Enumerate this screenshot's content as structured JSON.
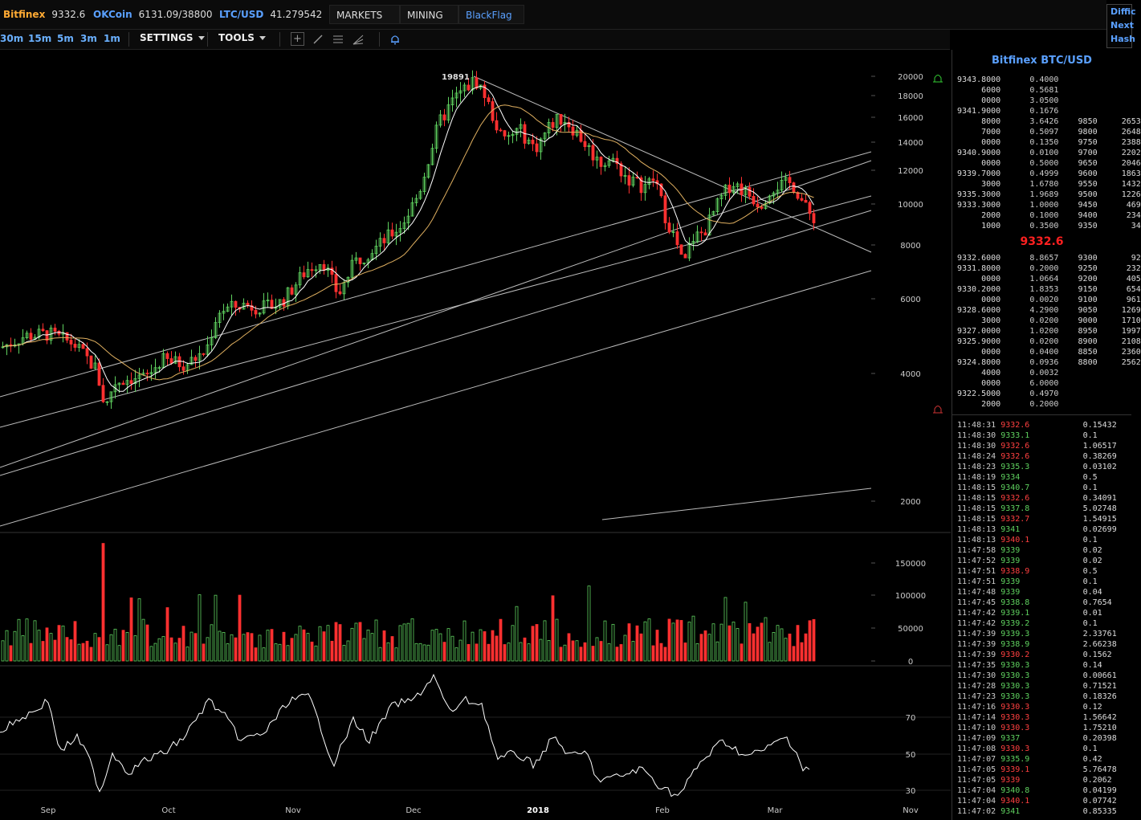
{
  "header": {
    "tickers": [
      {
        "name": "Bitfinex",
        "value": "9332.6",
        "color": "#ffaa33"
      },
      {
        "name": "OKCoin",
        "value": "6131.09/38800",
        "color": "#5aa0ff"
      },
      {
        "name": "LTC/USD",
        "value": "41.279542",
        "color": "#5aa0ff"
      }
    ],
    "menus": [
      "MARKETS",
      "MINING",
      "BlackFlag"
    ],
    "right_labels": [
      "Diffic",
      "Next",
      "Hash"
    ]
  },
  "toolbar": {
    "timeframes": [
      "30m",
      "15m",
      "5m",
      "3m",
      "1m"
    ],
    "settings_label": "SETTINGS",
    "tools_label": "TOOLS",
    "tool_icons": [
      "crosshair-icon",
      "line-draw-icon",
      "horizontal-lines-icon",
      "fib-fan-icon",
      "alert-bell-icon"
    ]
  },
  "chart_data": {
    "type": "candlestick",
    "title": "",
    "scale": "log",
    "price_ticks": [
      "20000",
      "18000",
      "16000",
      "14000",
      "12000",
      "10000",
      "8000",
      "6000",
      "4000",
      "2000"
    ],
    "high_marker": "19891",
    "date_ticks": [
      "Sep",
      "Oct",
      "Nov",
      "Dec",
      "2018",
      "Feb",
      "Mar",
      "Nov"
    ],
    "volume_ticks": [
      "150000",
      "100000",
      "50000",
      "0"
    ],
    "oscillator_ticks": [
      "70",
      "50",
      "30"
    ],
    "colors": {
      "up": "#5fd15f",
      "down": "#ff3030",
      "ma_fast": "#ffffff",
      "ma_slow": "#e0b060",
      "trend": "#bbbbbb"
    }
  },
  "orderbook": {
    "title": "Bitfinex BTC/USD",
    "mid_price": "9332.6",
    "asks": [
      [
        "9343.8000",
        "0.4000",
        "",
        ""
      ],
      [
        "6000",
        "0.5681",
        "",
        ""
      ],
      [
        "0000",
        "3.0500",
        "",
        ""
      ],
      [
        "9341.9000",
        "0.1676",
        "",
        ""
      ],
      [
        "8000",
        "3.6426",
        "9850",
        "2653"
      ],
      [
        "7000",
        "0.5097",
        "9800",
        "2648"
      ],
      [
        "0000",
        "0.1350",
        "9750",
        "2388"
      ],
      [
        "9340.9000",
        "0.0100",
        "9700",
        "2202"
      ],
      [
        "0000",
        "0.5000",
        "9650",
        "2046"
      ],
      [
        "9339.7000",
        "0.4999",
        "9600",
        "1863"
      ],
      [
        "3000",
        "1.6780",
        "9550",
        "1432"
      ],
      [
        "9335.3000",
        "1.9689",
        "9500",
        "1226"
      ],
      [
        "9333.3000",
        "1.0000",
        "9450",
        "469"
      ],
      [
        "2000",
        "0.1000",
        "9400",
        "234"
      ],
      [
        "1000",
        "0.3500",
        "9350",
        "34"
      ]
    ],
    "bids": [
      [
        "9332.6000",
        "8.8657",
        "9300",
        "92"
      ],
      [
        "9331.8000",
        "0.2000",
        "9250",
        "232"
      ],
      [
        "0000",
        "1.0664",
        "9200",
        "405"
      ],
      [
        "9330.2000",
        "1.8353",
        "9150",
        "654"
      ],
      [
        "0000",
        "0.0020",
        "9100",
        "961"
      ],
      [
        "9328.6000",
        "4.2900",
        "9050",
        "1269"
      ],
      [
        "3000",
        "0.0200",
        "9000",
        "1710"
      ],
      [
        "9327.0000",
        "1.0200",
        "8950",
        "1997"
      ],
      [
        "9325.9000",
        "0.0200",
        "8900",
        "2108"
      ],
      [
        "0000",
        "0.0400",
        "8850",
        "2360"
      ],
      [
        "9324.8000",
        "0.0936",
        "8800",
        "2562"
      ],
      [
        "4000",
        "0.0032",
        "",
        ""
      ],
      [
        "0000",
        "6.0000",
        "",
        ""
      ],
      [
        "9322.5000",
        "0.4970",
        "",
        ""
      ],
      [
        "2000",
        "0.2000",
        "",
        ""
      ]
    ]
  },
  "trades": [
    [
      "11:48:31",
      "9332.6",
      "0.15432",
      "dn"
    ],
    [
      "11:48:30",
      "9333.1",
      "0.1",
      "up"
    ],
    [
      "11:48:30",
      "9332.6",
      "1.06517",
      "dn"
    ],
    [
      "11:48:24",
      "9332.6",
      "0.38269",
      "dn"
    ],
    [
      "11:48:23",
      "9335.3",
      "0.03102",
      "up"
    ],
    [
      "11:48:19",
      "9334",
      "0.5",
      "up"
    ],
    [
      "11:48:15",
      "9340.7",
      "0.1",
      "up"
    ],
    [
      "11:48:15",
      "9332.6",
      "0.34091",
      "dn"
    ],
    [
      "11:48:15",
      "9337.8",
      "5.02748",
      "up"
    ],
    [
      "11:48:15",
      "9332.7",
      "1.54915",
      "dn"
    ],
    [
      "11:48:13",
      "9341",
      "0.02699",
      "up"
    ],
    [
      "11:48:13",
      "9340.1",
      "0.1",
      "dn"
    ],
    [
      "11:47:58",
      "9339",
      "0.02",
      "up"
    ],
    [
      "11:47:52",
      "9339",
      "0.02",
      "up"
    ],
    [
      "11:47:51",
      "9338.9",
      "0.5",
      "dn"
    ],
    [
      "11:47:51",
      "9339",
      "0.1",
      "up"
    ],
    [
      "11:47:48",
      "9339",
      "0.04",
      "up"
    ],
    [
      "11:47:45",
      "9338.8",
      "0.7654",
      "up"
    ],
    [
      "11:47:42",
      "9339.1",
      "0.01",
      "up"
    ],
    [
      "11:47:42",
      "9339.2",
      "0.1",
      "up"
    ],
    [
      "11:47:39",
      "9339.3",
      "2.33761",
      "up"
    ],
    [
      "11:47:39",
      "9338.9",
      "2.66238",
      "up"
    ],
    [
      "11:47:39",
      "9330.2",
      "0.1562",
      "dn"
    ],
    [
      "11:47:35",
      "9330.3",
      "0.14",
      "up"
    ],
    [
      "11:47:30",
      "9330.3",
      "0.00661",
      "up"
    ],
    [
      "11:47:28",
      "9330.3",
      "0.71521",
      "up"
    ],
    [
      "11:47:23",
      "9330.3",
      "0.18326",
      "up"
    ],
    [
      "11:47:16",
      "9330.3",
      "0.12",
      "dn"
    ],
    [
      "11:47:14",
      "9330.3",
      "1.56642",
      "dn"
    ],
    [
      "11:47:10",
      "9330.3",
      "1.75210",
      "dn"
    ],
    [
      "11:47:09",
      "9337",
      "0.20398",
      "up"
    ],
    [
      "11:47:08",
      "9330.3",
      "0.1",
      "dn"
    ],
    [
      "11:47:07",
      "9335.9",
      "0.42",
      "up"
    ],
    [
      "11:47:05",
      "9339.1",
      "5.76478",
      "dn"
    ],
    [
      "11:47:05",
      "9339",
      "0.2062",
      "dn"
    ],
    [
      "11:47:04",
      "9340.8",
      "0.04199",
      "up"
    ],
    [
      "11:47:04",
      "9340.1",
      "0.07742",
      "dn"
    ],
    [
      "11:47:02",
      "9341",
      "0.85335",
      "up"
    ]
  ]
}
